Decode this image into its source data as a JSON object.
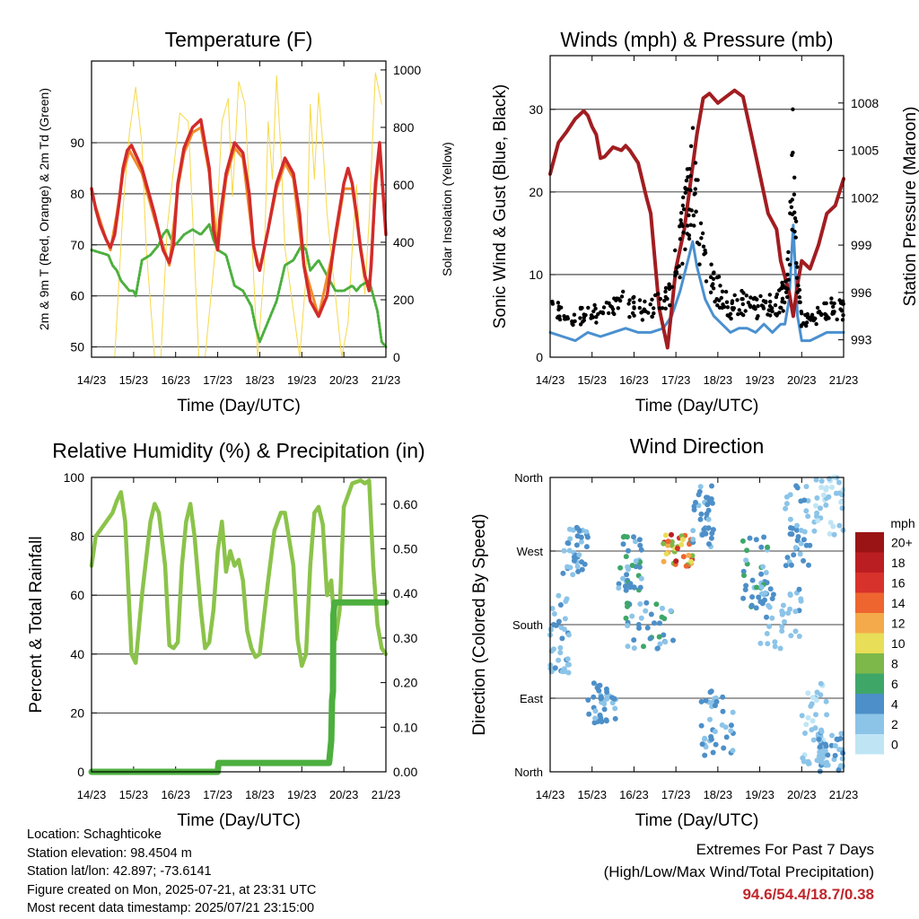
{
  "chart_data": [
    {
      "type": "line",
      "title": "Temperature (F)",
      "xlabel": "Time (Day/UTC)",
      "ylabel": "2m & 9m T (Red, Orange) & 2m Td (Green)",
      "ylabel_right": "Solar Insolation (Yellow)",
      "x_ticks": [
        "14/23",
        "15/23",
        "16/23",
        "17/23",
        "18/23",
        "19/23",
        "20/23",
        "21/23"
      ],
      "xlim": [
        0,
        7
      ],
      "ylim": [
        48,
        106
      ],
      "y_ticks": [
        50,
        60,
        70,
        80,
        90
      ],
      "ylim_right": [
        0,
        1031
      ],
      "y_ticks_right": [
        0,
        200,
        400,
        600,
        800,
        1000
      ],
      "grid": "horizontal",
      "series": [
        {
          "name": "2m T",
          "color": "#d22b2b",
          "axis": "left",
          "x": [
            0,
            0.1,
            0.2,
            0.35,
            0.45,
            0.55,
            0.65,
            0.75,
            0.85,
            0.95,
            1.2,
            1.5,
            1.7,
            1.85,
            1.95,
            2.05,
            2.2,
            2.4,
            2.6,
            2.8,
            2.9,
            3.0,
            3.05,
            3.2,
            3.4,
            3.6,
            3.75,
            3.85,
            3.95,
            4.0,
            4.2,
            4.4,
            4.6,
            4.8,
            4.95,
            5.05,
            5.2,
            5.4,
            5.6,
            5.8,
            6.0,
            6.1,
            6.2,
            6.3,
            6.4,
            6.5,
            6.6,
            6.65,
            6.75,
            6.85,
            7.0
          ],
          "y": [
            81,
            77,
            74,
            71,
            69.5,
            72,
            78,
            85,
            88.5,
            89.5,
            85,
            76,
            69,
            66.5,
            70,
            82,
            89,
            93,
            94.5,
            85,
            73,
            69,
            75,
            84,
            90,
            88,
            80,
            70,
            66,
            65,
            73,
            82,
            87,
            84,
            76,
            66,
            59,
            56,
            60,
            72,
            82,
            85,
            82,
            76,
            69,
            64,
            61,
            66,
            82,
            90,
            72
          ]
        },
        {
          "name": "9m T",
          "color": "#f08c2a",
          "axis": "left",
          "x": [
            0,
            0.35,
            0.45,
            0.6,
            0.75,
            0.9,
            1.2,
            1.5,
            1.85,
            2.05,
            2.2,
            2.4,
            2.6,
            2.8,
            3.0,
            3.2,
            3.4,
            3.6,
            3.85,
            4.0,
            4.4,
            4.6,
            4.8,
            5.05,
            5.4,
            5.8,
            6.0,
            6.2,
            6.5,
            6.6,
            6.75,
            6.85,
            7.0
          ],
          "y": [
            80,
            71,
            69,
            76,
            84,
            88.5,
            84,
            75,
            66,
            81,
            88,
            92,
            93,
            84,
            69,
            83,
            89,
            87,
            70,
            65,
            81,
            86,
            83,
            66,
            56,
            71,
            81,
            81,
            64,
            61,
            80,
            89,
            72
          ]
        },
        {
          "name": "2m Td",
          "color": "#4caf3e",
          "axis": "left",
          "x": [
            0,
            0.2,
            0.4,
            0.5,
            0.6,
            0.7,
            0.8,
            0.9,
            1.0,
            1.05,
            1.2,
            1.4,
            1.6,
            1.7,
            1.8,
            1.9,
            2.0,
            2.2,
            2.4,
            2.6,
            2.8,
            2.9,
            3.0,
            3.2,
            3.4,
            3.6,
            3.8,
            3.9,
            4.0,
            4.2,
            4.4,
            4.6,
            4.8,
            5.0,
            5.1,
            5.2,
            5.4,
            5.6,
            5.8,
            6.0,
            6.2,
            6.3,
            6.4,
            6.6,
            6.8,
            6.9,
            7.0
          ],
          "y": [
            69,
            68.5,
            68,
            66,
            65,
            63,
            62,
            61,
            61,
            60,
            67,
            68,
            70,
            72,
            73,
            71,
            70,
            72,
            73,
            72,
            74,
            71,
            69,
            68,
            62,
            61,
            58,
            54,
            51,
            55,
            59,
            66,
            67,
            70,
            69,
            65,
            67,
            64,
            61,
            61,
            62,
            61,
            62,
            63,
            57,
            51,
            50
          ]
        },
        {
          "name": "Solar Insolation",
          "color": "#f6d94a",
          "axis": "right",
          "x": [
            0.55,
            0.75,
            0.9,
            1.05,
            1.2,
            1.3,
            1.5,
            1.65,
            1.8,
            2.0,
            2.1,
            2.3,
            2.4,
            2.55,
            2.7,
            2.95,
            3.1,
            3.25,
            3.35,
            3.5,
            3.65,
            3.95,
            4.1,
            4.2,
            4.3,
            4.4,
            4.5,
            4.6,
            4.95,
            5.1,
            5.2,
            5.3,
            5.4,
            5.5,
            5.6,
            5.95,
            6.1,
            6.2,
            6.3,
            6.4,
            6.5,
            6.6,
            6.75,
            6.9
          ],
          "y": [
            0,
            520,
            780,
            940,
            740,
            380,
            0,
            0,
            450,
            720,
            850,
            820,
            500,
            0,
            0,
            380,
            820,
            900,
            560,
            960,
            880,
            0,
            300,
            820,
            620,
            980,
            720,
            380,
            0,
            280,
            880,
            620,
            920,
            740,
            500,
            0,
            120,
            380,
            600,
            360,
            220,
            480,
            990,
            880
          ]
        }
      ]
    },
    {
      "type": "line",
      "title": "Winds (mph) & Pressure (mb)",
      "xlabel": "Time (Day/UTC)",
      "ylabel": "Sonic Wind & Gust (Blue, Black)",
      "ylabel_right": "Station Pressure (Maroon)",
      "x_ticks": [
        "14/23",
        "15/23",
        "16/23",
        "17/23",
        "18/23",
        "19/23",
        "20/23",
        "21/23"
      ],
      "xlim": [
        0,
        7
      ],
      "ylim": [
        0,
        36.5
      ],
      "y_ticks": [
        0,
        10,
        20,
        30
      ],
      "ylim_right": [
        991.9,
        1011
      ],
      "y_ticks_right": [
        993,
        996,
        999,
        1002,
        1005,
        1008
      ],
      "grid": "horizontal",
      "series": [
        {
          "name": "Sonic Wind",
          "color": "#4a90d0",
          "axis": "left",
          "x": [
            0,
            0.3,
            0.6,
            0.9,
            1.2,
            1.5,
            1.8,
            2.1,
            2.4,
            2.7,
            2.9,
            3.1,
            3.2,
            3.3,
            3.4,
            3.5,
            3.7,
            3.9,
            4.1,
            4.3,
            4.5,
            4.7,
            4.9,
            5.1,
            5.3,
            5.5,
            5.6,
            5.7,
            5.8,
            5.9,
            6.0,
            6.2,
            6.4,
            6.6,
            6.8,
            7.0
          ],
          "y": [
            3,
            2.5,
            2,
            3,
            2.5,
            3,
            3.5,
            3,
            3,
            3.5,
            5,
            8,
            10,
            12,
            14,
            11,
            7,
            5,
            4,
            3,
            3.5,
            3.5,
            3,
            4,
            3,
            4,
            4,
            7,
            16,
            5,
            2,
            2,
            2.5,
            3,
            3,
            3
          ]
        },
        {
          "name": "Station Pressure",
          "color": "#a11d21",
          "axis": "right",
          "x": [
            0,
            0.2,
            0.4,
            0.6,
            0.8,
            0.9,
            1.0,
            1.1,
            1.2,
            1.3,
            1.5,
            1.7,
            1.8,
            1.9,
            2.1,
            2.3,
            2.4,
            2.5,
            2.6,
            2.8,
            2.9,
            3.0,
            3.2,
            3.35,
            3.5,
            3.65,
            3.8,
            4.0,
            4.2,
            4.4,
            4.6,
            4.8,
            5.0,
            5.2,
            5.4,
            5.5,
            5.6,
            5.7,
            5.8,
            5.9,
            6.0,
            6.2,
            6.4,
            6.6,
            6.8,
            7.0
          ],
          "y": [
            1003.5,
            1005.5,
            1006.2,
            1007,
            1007.5,
            1007.2,
            1006.5,
            1006,
            1004.5,
            1004.6,
            1005.2,
            1005,
            1005.3,
            1005,
            1004.2,
            1002,
            1001,
            998,
            995,
            992.5,
            995,
            997.5,
            1000,
            1003,
            1006,
            1008.3,
            1008.6,
            1008,
            1008.4,
            1008.8,
            1008.4,
            1006,
            1003.5,
            1001,
            1000,
            998,
            997,
            996,
            994.5,
            996.5,
            998,
            997.5,
            999,
            1001,
            1001.5,
            1003.2
          ]
        }
      ]
    },
    {
      "type": "line",
      "title": "Relative Humidity (%) & Precipitation (in)",
      "xlabel": "Time (Day/UTC)",
      "ylabel": "Percent & Total Rainfall",
      "x_ticks": [
        "14/23",
        "15/23",
        "16/23",
        "17/23",
        "18/23",
        "19/23",
        "20/23",
        "21/23"
      ],
      "xlim": [
        0,
        7
      ],
      "ylim": [
        0,
        100
      ],
      "y_ticks": [
        0,
        20,
        40,
        60,
        80,
        100
      ],
      "ylim_right": [
        0,
        0.66
      ],
      "y_ticks_right": [
        "0.00",
        "0.10",
        "0.20",
        "0.30",
        "0.40",
        "0.50",
        "0.60"
      ],
      "grid": "horizontal",
      "series": [
        {
          "name": "Relative Humidity",
          "color": "#8bc34a",
          "axis": "left",
          "x": [
            0,
            0.1,
            0.3,
            0.5,
            0.6,
            0.7,
            0.8,
            0.9,
            0.95,
            1.05,
            1.2,
            1.4,
            1.5,
            1.6,
            1.75,
            1.85,
            1.95,
            2.05,
            2.15,
            2.25,
            2.35,
            2.45,
            2.6,
            2.7,
            2.8,
            2.9,
            3.0,
            3.1,
            3.2,
            3.3,
            3.4,
            3.5,
            3.6,
            3.7,
            3.8,
            3.9,
            4.0,
            4.2,
            4.35,
            4.5,
            4.6,
            4.8,
            4.9,
            5.0,
            5.1,
            5.2,
            5.3,
            5.4,
            5.5,
            5.6,
            5.7,
            5.8,
            5.9,
            6.0,
            6.2,
            6.4,
            6.5,
            6.6,
            6.7,
            6.8,
            6.9,
            7.0
          ],
          "y": [
            70,
            80,
            84,
            88,
            92,
            95,
            85,
            55,
            40,
            37,
            60,
            85,
            91,
            88,
            70,
            43,
            42,
            44,
            70,
            85,
            91,
            80,
            55,
            42,
            44,
            55,
            75,
            85,
            68,
            75,
            70,
            72,
            65,
            48,
            42,
            39,
            40,
            65,
            82,
            88,
            88,
            70,
            45,
            36,
            40,
            70,
            88,
            90,
            84,
            60,
            65,
            45,
            55,
            90,
            98,
            99,
            98,
            99,
            70,
            50,
            42,
            40
          ]
        },
        {
          "name": "Total Rainfall",
          "color": "#4caf3e",
          "axis": "right",
          "x": [
            0,
            3.0,
            3.02,
            5.65,
            5.7,
            5.72,
            5.74,
            5.75,
            5.78,
            7.0
          ],
          "y": [
            0,
            0,
            0.02,
            0.02,
            0.07,
            0.16,
            0.18,
            0.35,
            0.38,
            0.38
          ]
        }
      ]
    },
    {
      "type": "scatter",
      "title": "Wind Direction",
      "xlabel": "Time (Day/UTC)",
      "ylabel": "Direction (Colored By Speed)",
      "x_ticks": [
        "14/23",
        "15/23",
        "16/23",
        "17/23",
        "18/23",
        "19/23",
        "20/23",
        "21/23"
      ],
      "xlim": [
        0,
        7
      ],
      "ylim": [
        0,
        360
      ],
      "y_ticks": [
        "North",
        "East",
        "South",
        "West",
        "North"
      ],
      "grid": "horizontal",
      "legend_title": "mph",
      "legend_labels": [
        "0",
        "2",
        "4",
        "6",
        "8",
        "10",
        "12",
        "14",
        "16",
        "18",
        "20+"
      ],
      "legend_colors": [
        "#bfe5f5",
        "#8cc4e8",
        "#4d8fc8",
        "#3ea768",
        "#7db84a",
        "#e8de58",
        "#f4aa4a",
        "#ee6530",
        "#d8322c",
        "#bb1e22",
        "#9a1416"
      ],
      "clusters": [
        {
          "x_range": [
            0,
            0.5
          ],
          "dir_range": [
            120,
            220
          ],
          "speed": [
            1,
            4
          ]
        },
        {
          "x_range": [
            0.3,
            0.9
          ],
          "dir_range": [
            240,
            300
          ],
          "speed": [
            2,
            5
          ]
        },
        {
          "x_range": [
            0.9,
            1.6
          ],
          "dir_range": [
            60,
            110
          ],
          "speed": [
            2,
            4
          ]
        },
        {
          "x_range": [
            1.6,
            2.2
          ],
          "dir_range": [
            220,
            290
          ],
          "speed": [
            2,
            6
          ]
        },
        {
          "x_range": [
            1.8,
            3.0
          ],
          "dir_range": [
            150,
            210
          ],
          "speed": [
            2,
            6
          ]
        },
        {
          "x_range": [
            2.7,
            3.4
          ],
          "dir_range": [
            250,
            290
          ],
          "speed": [
            6,
            18
          ]
        },
        {
          "x_range": [
            3.4,
            3.9
          ],
          "dir_range": [
            270,
            350
          ],
          "speed": [
            2,
            5
          ]
        },
        {
          "x_range": [
            3.6,
            4.4
          ],
          "dir_range": [
            20,
            100
          ],
          "speed": [
            2,
            4
          ]
        },
        {
          "x_range": [
            4.6,
            5.2
          ],
          "dir_range": [
            200,
            290
          ],
          "speed": [
            2,
            6
          ]
        },
        {
          "x_range": [
            5.0,
            6.0
          ],
          "dir_range": [
            150,
            230
          ],
          "speed": [
            1,
            4
          ]
        },
        {
          "x_range": [
            5.6,
            6.2
          ],
          "dir_range": [
            250,
            350
          ],
          "speed": [
            1,
            5
          ]
        },
        {
          "x_range": [
            6.0,
            6.6
          ],
          "dir_range": [
            0,
            110
          ],
          "speed": [
            0,
            3
          ]
        },
        {
          "x_range": [
            6.3,
            7.0
          ],
          "dir_range": [
            290,
            360
          ],
          "speed": [
            0,
            3
          ]
        },
        {
          "x_range": [
            6.4,
            7.0
          ],
          "dir_range": [
            0,
            50
          ],
          "speed": [
            1,
            4
          ]
        }
      ]
    }
  ],
  "info": {
    "location": "Location: Schaghticoke",
    "elevation": "Station elevation: 98.4504 m",
    "latlon": "Station lat/lon: 42.897; -73.6141",
    "created": "Figure created on Mon, 2025-07-21, at 23:31 UTC",
    "recent": "Most recent data timestamp: 2025/07/21 23:15:00"
  },
  "extremes": {
    "title": "Extremes For Past 7 Days",
    "subtitle": "(High/Low/Max Wind/Total Precipitation)",
    "values": "94.6/54.4/18.7/0.38"
  }
}
